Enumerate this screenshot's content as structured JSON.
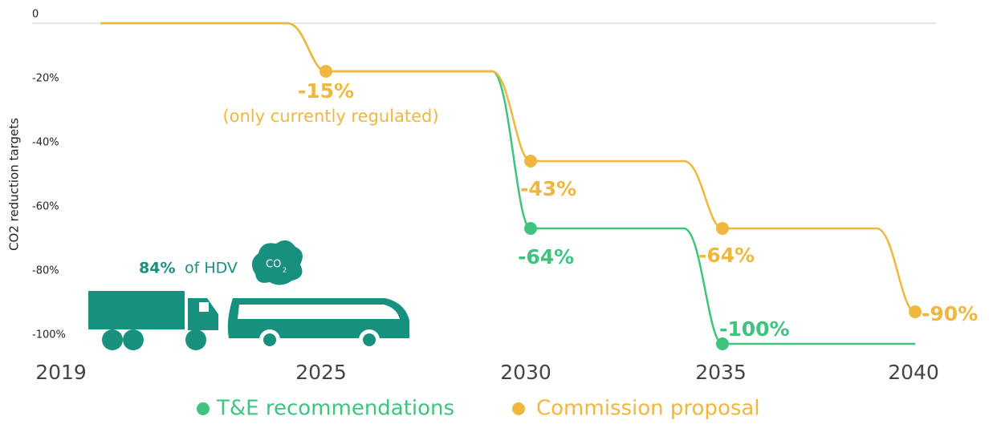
{
  "chart_data": {
    "type": "line",
    "y_label": "CO2 reduction targets",
    "categories": [
      "2019",
      "2025",
      "2030",
      "2035",
      "2040"
    ],
    "series": [
      {
        "name": "Commission proposal",
        "color": "#f0b73f",
        "values": [
          0,
          -15,
          -43,
          -64,
          -90
        ],
        "value_labels": [
          null,
          "-15%",
          "-43%",
          "-64%",
          "-90%"
        ]
      },
      {
        "name": "T&E recommendations",
        "color": "#3ec47f",
        "values": [
          0,
          -15,
          -64,
          -100,
          -100
        ],
        "value_labels": [
          null,
          null,
          "-64%",
          "-100%",
          null
        ]
      }
    ],
    "legend_order": [
      1,
      0
    ],
    "ylim": [
      -100,
      0
    ],
    "yticks": [
      0,
      {
        "value": -20,
        "label": "-20%"
      },
      {
        "value": -40,
        "label": "-40%"
      },
      {
        "value": -60,
        "label": "-60%"
      },
      {
        "value": -80,
        "label": "-80%"
      },
      {
        "value": -100,
        "label": "-100%"
      }
    ],
    "annotations": [
      "(only currently regulated)"
    ],
    "icon_text": {
      "share": "84%",
      "rest": "of HDV",
      "cloud": "CO",
      "cloud_sub": "2"
    }
  }
}
